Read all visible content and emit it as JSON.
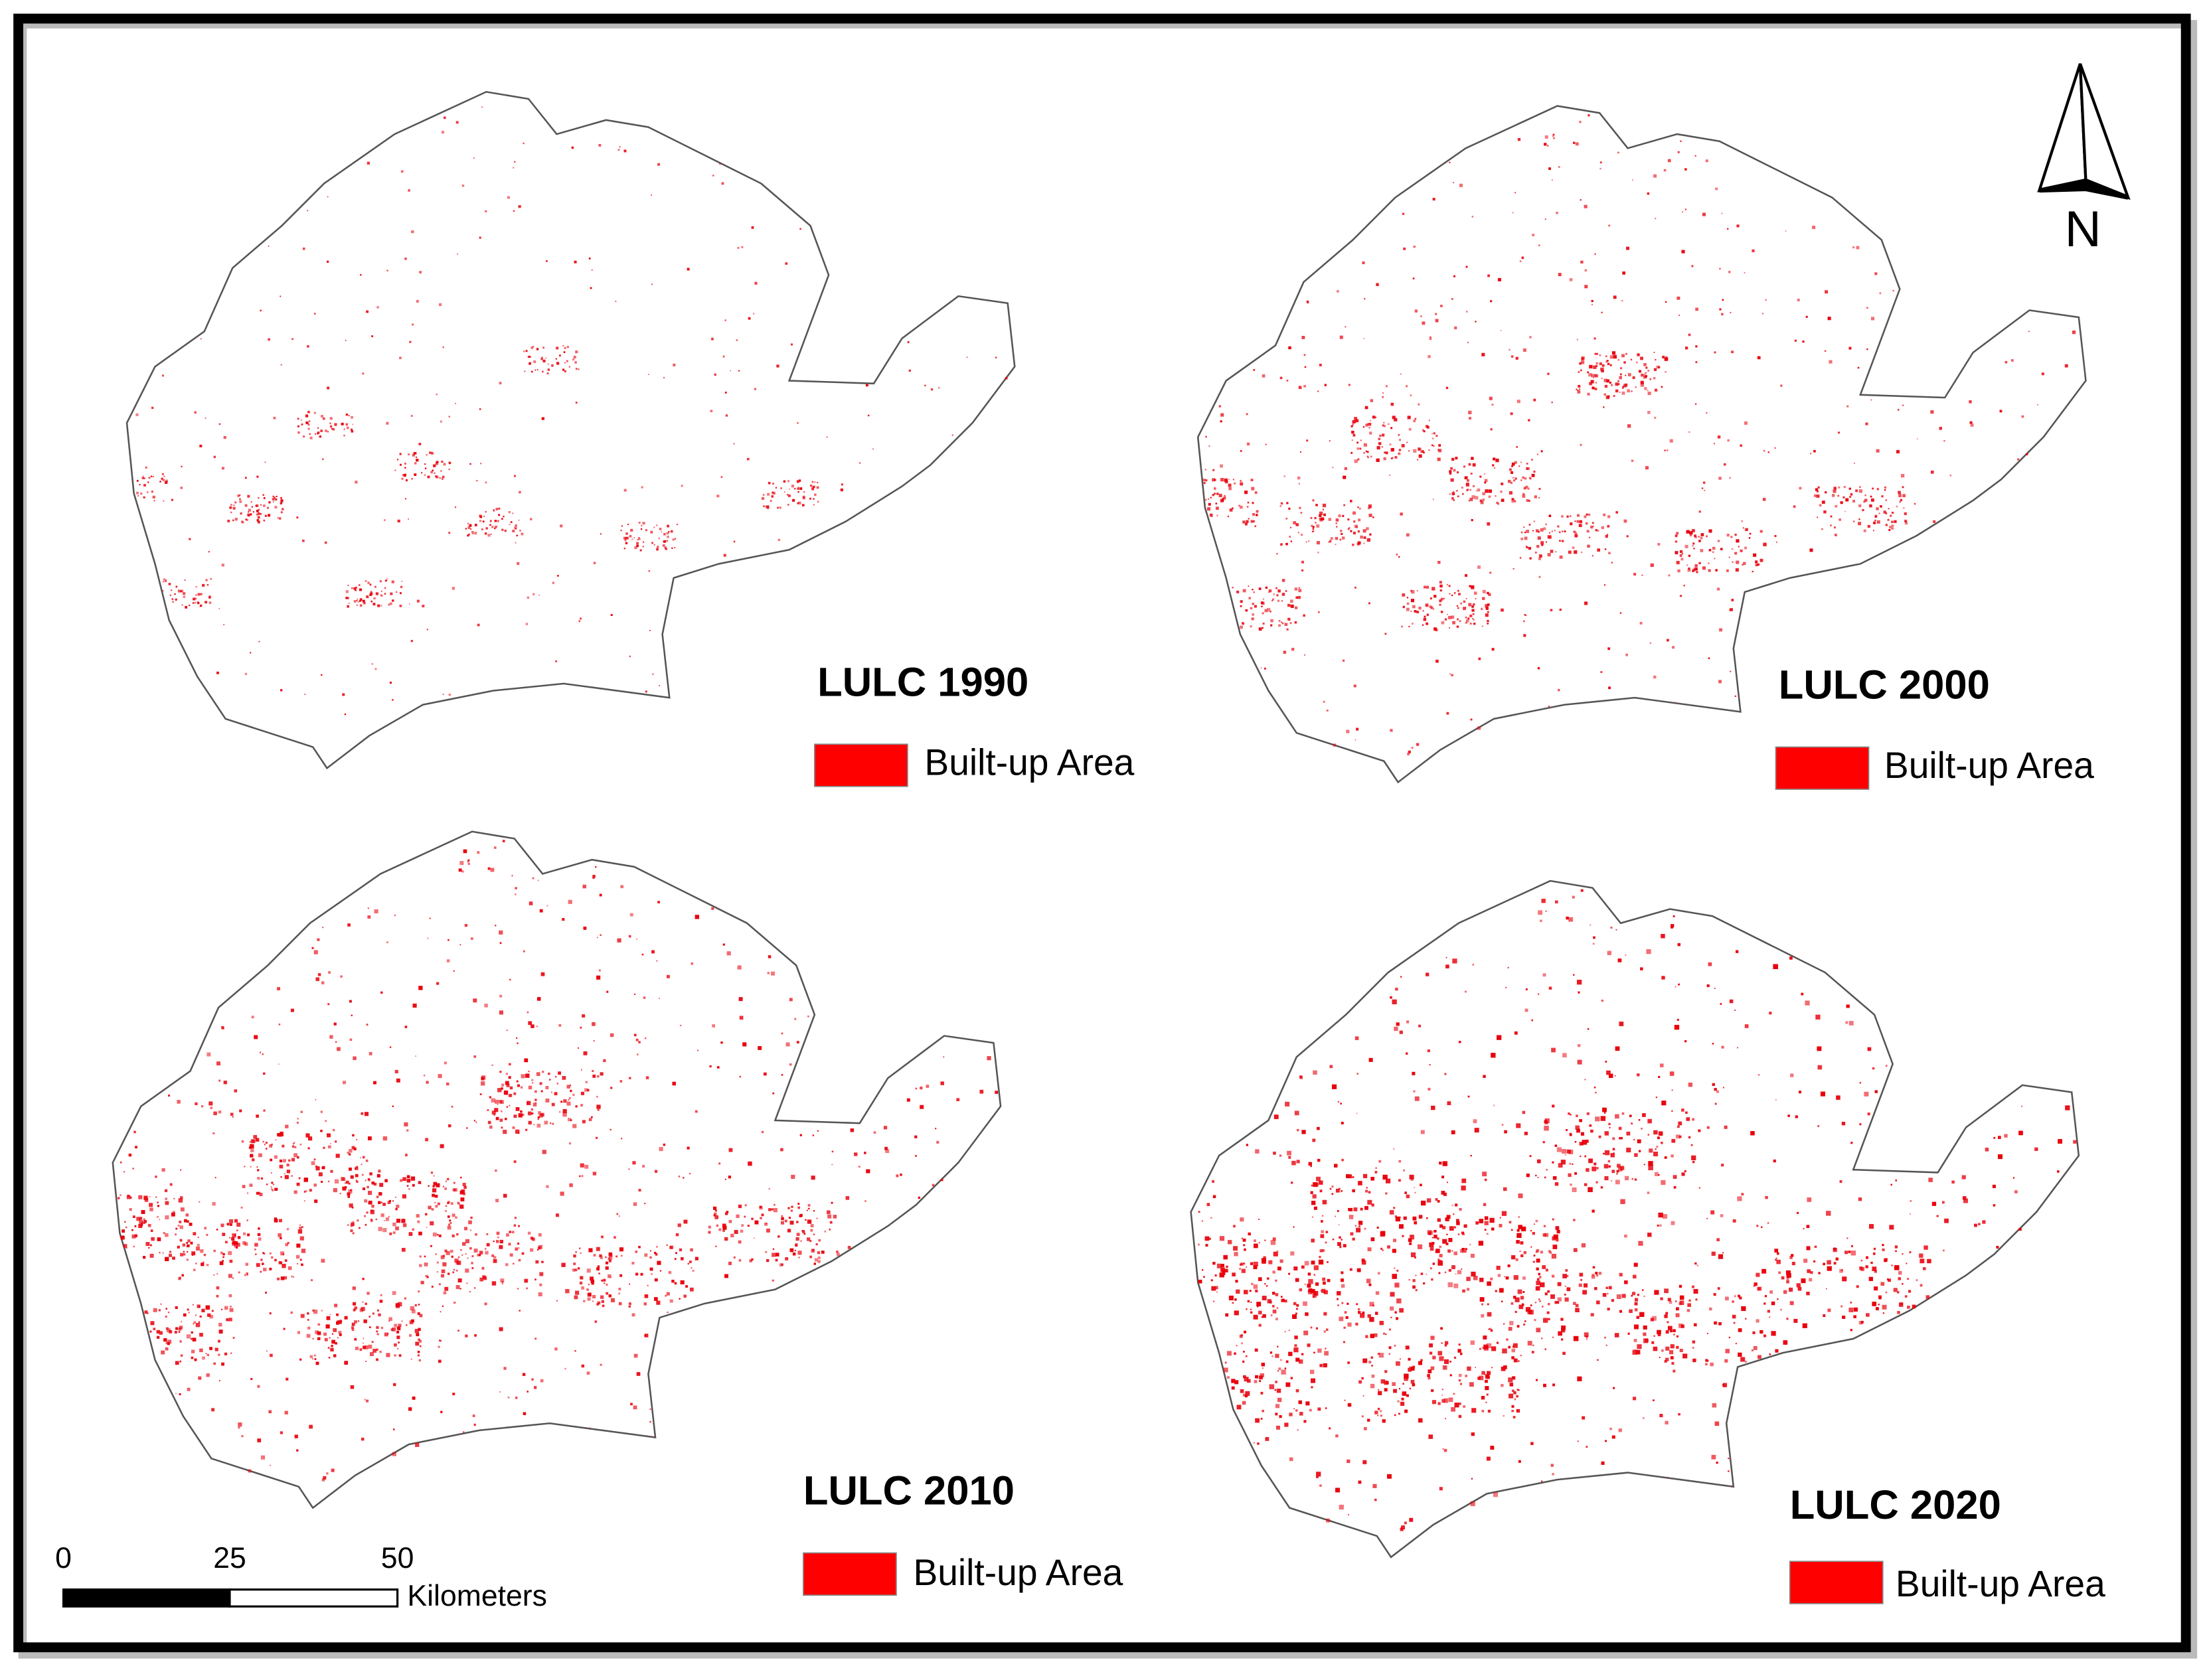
{
  "map": {
    "panels": [
      {
        "title": "LULC 1990",
        "legend": "Built-up Area"
      },
      {
        "title": "LULC 2000",
        "legend": "Built-up Area"
      },
      {
        "title": "LULC 2010",
        "legend": "Built-up Area"
      },
      {
        "title": "LULC 2020",
        "legend": "Built-up Area"
      }
    ],
    "north_label": "N",
    "scale_bar": {
      "labels": [
        0,
        25,
        50
      ],
      "unit": "Kilometers"
    }
  }
}
